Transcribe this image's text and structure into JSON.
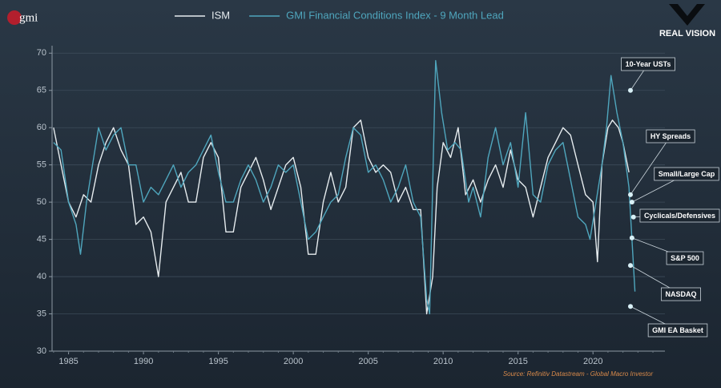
{
  "chart_data": {
    "type": "line",
    "logo": "gmi",
    "brand": "REAL VISION",
    "source": "Source: Refinitiv Datastream - Global Macro Investor",
    "xlim": [
      1983.9,
      2024.8
    ],
    "xticks": [
      1985,
      1990,
      1995,
      2000,
      2005,
      2010,
      2015,
      2020
    ],
    "ylim": [
      30,
      71
    ],
    "yticks": [
      30,
      35,
      40,
      45,
      50,
      55,
      60,
      65,
      70
    ],
    "grid": true,
    "legend": "top",
    "series": [
      {
        "name": "ISM",
        "color": "#e6ecef",
        "x": [
          1984,
          1984.5,
          1985,
          1985.5,
          1986,
          1986.5,
          1987,
          1987.5,
          1988,
          1988.5,
          1989,
          1989.5,
          1990,
          1990.5,
          1991,
          1991.5,
          1992,
          1992.5,
          1993,
          1993.5,
          1994,
          1994.5,
          1995,
          1995.5,
          1996,
          1996.5,
          1997,
          1997.5,
          1998,
          1998.5,
          1999,
          1999.5,
          2000,
          2000.5,
          2001,
          2001.5,
          2002,
          2002.5,
          2003,
          2003.5,
          2004,
          2004.5,
          2005,
          2005.5,
          2006,
          2006.5,
          2007,
          2007.5,
          2008,
          2008.5,
          2008.9,
          2009.3,
          2009.6,
          2010,
          2010.5,
          2011,
          2011.5,
          2012,
          2012.5,
          2013,
          2013.5,
          2014,
          2014.5,
          2015,
          2015.5,
          2016,
          2016.5,
          2017,
          2017.5,
          2018,
          2018.5,
          2019,
          2019.5,
          2020,
          2020.3,
          2020.6,
          2021,
          2021.3,
          2021.7,
          2022,
          2022.4
        ],
        "values": [
          60,
          55,
          50,
          48,
          51,
          50,
          55,
          58,
          60,
          57,
          55,
          47,
          48,
          46,
          40,
          50,
          52,
          54,
          50,
          50,
          56,
          58,
          56,
          46,
          46,
          52,
          54,
          56,
          53,
          49,
          52,
          55,
          56,
          52,
          43,
          43,
          50,
          54,
          50,
          52,
          60,
          61,
          56,
          54,
          55,
          54,
          50,
          52,
          49,
          49,
          35,
          40,
          52,
          58,
          56,
          60,
          51,
          53,
          50,
          53,
          55,
          52,
          57,
          53,
          52,
          48,
          52,
          56,
          58,
          60,
          59,
          55,
          51,
          50,
          42,
          55,
          60,
          61,
          60,
          58,
          54
        ]
      },
      {
        "name": "GMI Financial Conditions Index - 9 Month Lead",
        "color": "#4fa6bd",
        "x": [
          1984,
          1984.5,
          1985,
          1985.5,
          1985.8,
          1986.2,
          1986.6,
          1987,
          1987.5,
          1988,
          1988.5,
          1989,
          1989.5,
          1990,
          1990.5,
          1991,
          1991.5,
          1992,
          1992.5,
          1993,
          1993.5,
          1994,
          1994.5,
          1995,
          1995.5,
          1996,
          1996.5,
          1997,
          1997.5,
          1998,
          1998.5,
          1999,
          1999.5,
          2000,
          2000.5,
          2001,
          2001.5,
          2002,
          2002.5,
          2003,
          2003.5,
          2004,
          2004.5,
          2005,
          2005.5,
          2006,
          2006.5,
          2007,
          2007.5,
          2008,
          2008.5,
          2008.9,
          2009.1,
          2009.5,
          2009.9,
          2010.3,
          2010.8,
          2011.2,
          2011.7,
          2012,
          2012.5,
          2013,
          2013.5,
          2014,
          2014.5,
          2015,
          2015.5,
          2016,
          2016.5,
          2017,
          2017.5,
          2018,
          2018.5,
          2019,
          2019.5,
          2019.8,
          2020.2,
          2020.6,
          2020.9,
          2021.2,
          2021.6,
          2022,
          2022.4,
          2022.8
        ],
        "values": [
          58,
          57,
          50,
          47,
          43,
          50,
          55,
          60,
          57,
          59,
          60,
          55,
          55,
          50,
          52,
          51,
          53,
          55,
          52,
          54,
          55,
          57,
          59,
          54,
          50,
          50,
          53,
          55,
          53,
          50,
          52,
          55,
          54,
          55,
          50,
          45,
          46,
          48,
          50,
          51,
          56,
          60,
          59,
          54,
          55,
          53,
          50,
          52,
          55,
          50,
          48,
          37,
          35,
          69,
          62,
          57,
          58,
          57,
          50,
          52,
          48,
          56,
          60,
          55,
          58,
          52,
          62,
          51,
          50,
          55,
          57,
          58,
          53,
          48,
          47,
          45,
          50,
          55,
          60,
          67,
          62,
          58,
          52,
          38
        ]
      }
    ],
    "annotations": [
      {
        "label": "10-Year USTs",
        "x": 2022.5,
        "y": 65
      },
      {
        "label": "HY Spreads",
        "x": 2022.5,
        "y": 51
      },
      {
        "label": "Small/Large Cap",
        "x": 2022.6,
        "y": 50
      },
      {
        "label": "Cyclicals/Defensives",
        "x": 2022.7,
        "y": 48
      },
      {
        "label": "S&P 500",
        "x": 2022.6,
        "y": 45.2
      },
      {
        "label": "NASDAQ",
        "x": 2022.5,
        "y": 41.5
      },
      {
        "label": "GMI EA Basket",
        "x": 2022.5,
        "y": 36
      }
    ]
  }
}
